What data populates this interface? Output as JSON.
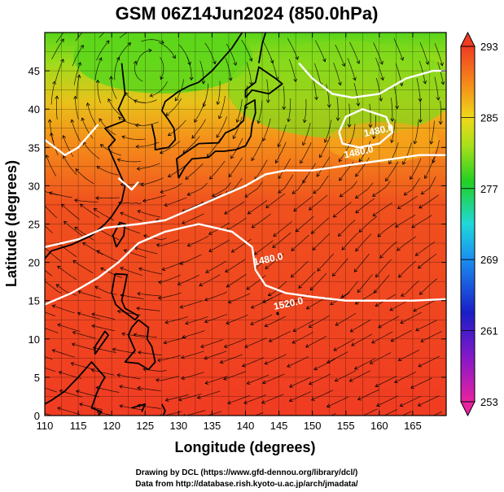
{
  "title": "GSM 06Z14Jun2024 (850.0hPa)",
  "x_axis": {
    "label": "Longitude (degrees)",
    "min": 110,
    "max": 170,
    "ticks": [
      "110",
      "115",
      "120",
      "125",
      "130",
      "135",
      "140",
      "145",
      "150",
      "155",
      "160",
      "165"
    ]
  },
  "y_axis": {
    "label": "Latitude  (degrees)",
    "min": 0,
    "max": 50,
    "ticks": [
      "0",
      "5",
      "10",
      "15",
      "20",
      "25",
      "30",
      "35",
      "40",
      "45"
    ]
  },
  "colorbar": {
    "min": 253,
    "max": 293,
    "labels": [
      "293",
      "285",
      "277",
      "269",
      "261",
      "253"
    ]
  },
  "contours": [
    {
      "label": "1480.0",
      "lon": 143.5,
      "lat": 20.0
    },
    {
      "label": "1520.0",
      "lon": 146.5,
      "lat": 14.2
    },
    {
      "label": "1480.0",
      "lon": 157.0,
      "lat": 34.0
    },
    {
      "label": "1480.0",
      "lon": 160.0,
      "lat": 36.8
    }
  ],
  "credits": {
    "line1": "Drawing by DCL (https://www.gfd-dennou.org/library/dcl/)",
    "line2": "Data from http://database.rish.kyoto-u.ac.jp/arch/jmadata/"
  },
  "colors": {
    "warm": "#ee3a1c",
    "cold": "#2dcf17",
    "contour": "#ffffff",
    "coast": "#000000"
  }
}
